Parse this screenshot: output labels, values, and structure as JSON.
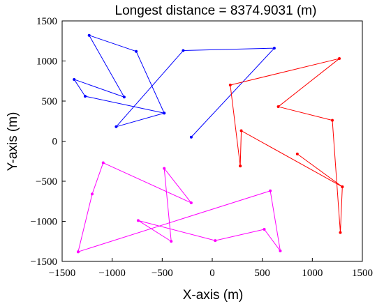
{
  "chart_data": {
    "type": "line",
    "title": "Longest distance = 8374.9031 (m)",
    "xlabel": "X-axis (m)",
    "ylabel": "Y-axis (m)",
    "xlim": [
      -1500,
      1500
    ],
    "ylim": [
      -1500,
      1500
    ],
    "xticks": [
      -1500,
      -1000,
      -500,
      0,
      500,
      1000,
      1500
    ],
    "yticks": [
      -1500,
      -1000,
      -500,
      0,
      500,
      1000,
      1500
    ],
    "xtick_labels": [
      "−1500",
      "−1000",
      "−500",
      "0",
      "500",
      "1000",
      "1500"
    ],
    "ytick_labels": [
      "−1500",
      "−1000",
      "−500",
      "0",
      "500",
      "1000",
      "1500"
    ],
    "grid": false,
    "series": [
      {
        "color": "#0000ff",
        "points": [
          [
            -210,
            50
          ],
          [
            620,
            1160
          ],
          [
            -290,
            1130
          ],
          [
            -960,
            180
          ],
          [
            -480,
            350
          ],
          [
            -760,
            1120
          ],
          [
            -1230,
            1320
          ],
          [
            -880,
            550
          ],
          [
            -1380,
            770
          ],
          [
            -1270,
            560
          ],
          [
            -480,
            350
          ]
        ]
      },
      {
        "color": "#ff0000",
        "points": [
          [
            280,
            -310
          ],
          [
            180,
            700
          ],
          [
            1270,
            1030
          ],
          [
            660,
            430
          ],
          [
            1200,
            260
          ],
          [
            1280,
            -1140
          ],
          [
            1300,
            -570
          ],
          [
            850,
            -160
          ],
          [
            1300,
            -570
          ],
          [
            290,
            130
          ],
          [
            280,
            -310
          ]
        ]
      },
      {
        "color": "#ff00ff",
        "points": [
          [
            -1340,
            -1380
          ],
          [
            580,
            -620
          ],
          [
            680,
            -1370
          ],
          [
            520,
            -1100
          ],
          [
            30,
            -1240
          ],
          [
            -740,
            -990
          ],
          [
            -410,
            -1250
          ],
          [
            -480,
            -340
          ],
          [
            -210,
            -770
          ],
          [
            -1090,
            -270
          ],
          [
            -1200,
            -660
          ],
          [
            -1340,
            -1380
          ]
        ]
      }
    ]
  }
}
